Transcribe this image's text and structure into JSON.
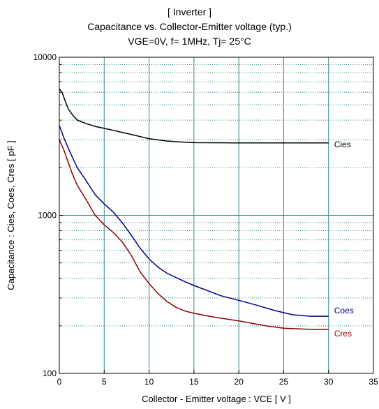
{
  "chart_data": {
    "type": "line",
    "title": "[ Inverter ]",
    "subtitle": "Capacitance  vs.  Collector-Emitter voltage  (typ.)",
    "conditions": "VGE=0V,  f= 1MHz,  Tj= 25°C",
    "xlabel": "Collector - Emitter voltage  :  VCE  [ V ]",
    "ylabel": "Capacitance  :  Cies, Coes, Cres  [ pF ]",
    "xlim": [
      0,
      35
    ],
    "ylim": [
      100,
      10000
    ],
    "yscale": "log",
    "grid": true,
    "x_ticks": [
      "0",
      "5",
      "10",
      "15",
      "20",
      "25",
      "30",
      "35"
    ],
    "y_ticks": [
      "100",
      "1000",
      "10000"
    ],
    "series": [
      {
        "name": "Cies",
        "color": "#000000",
        "x": [
          0,
          0.3,
          0.7,
          1,
          1.5,
          2,
          3,
          4,
          5,
          6,
          7,
          8,
          9,
          10,
          12,
          14,
          15,
          20,
          25,
          30
        ],
        "y": [
          6300,
          6000,
          5200,
          4700,
          4300,
          4000,
          3800,
          3650,
          3550,
          3450,
          3350,
          3250,
          3150,
          3050,
          2950,
          2900,
          2880,
          2870,
          2870,
          2870
        ]
      },
      {
        "name": "Coes",
        "color": "#00008b",
        "x": [
          0,
          0.5,
          1,
          1.5,
          2,
          3,
          4,
          5,
          6,
          7,
          8,
          9,
          10,
          11,
          12,
          14,
          15,
          18,
          20,
          22,
          24,
          26,
          28,
          30
        ],
        "y": [
          3700,
          3100,
          2650,
          2300,
          2000,
          1650,
          1350,
          1180,
          1050,
          900,
          750,
          620,
          530,
          470,
          430,
          380,
          360,
          310,
          290,
          270,
          250,
          235,
          230,
          230
        ]
      },
      {
        "name": "Cres",
        "color": "#8b0000",
        "x": [
          0,
          0.5,
          1,
          1.5,
          2,
          3,
          4,
          5,
          6,
          7,
          8,
          9,
          10,
          11,
          12,
          13,
          14,
          15,
          17,
          20,
          23,
          25,
          28,
          30
        ],
        "y": [
          3000,
          2600,
          2150,
          1800,
          1550,
          1250,
          1000,
          870,
          780,
          680,
          560,
          440,
          370,
          320,
          285,
          262,
          248,
          240,
          228,
          215,
          200,
          193,
          190,
          190
        ]
      }
    ]
  }
}
